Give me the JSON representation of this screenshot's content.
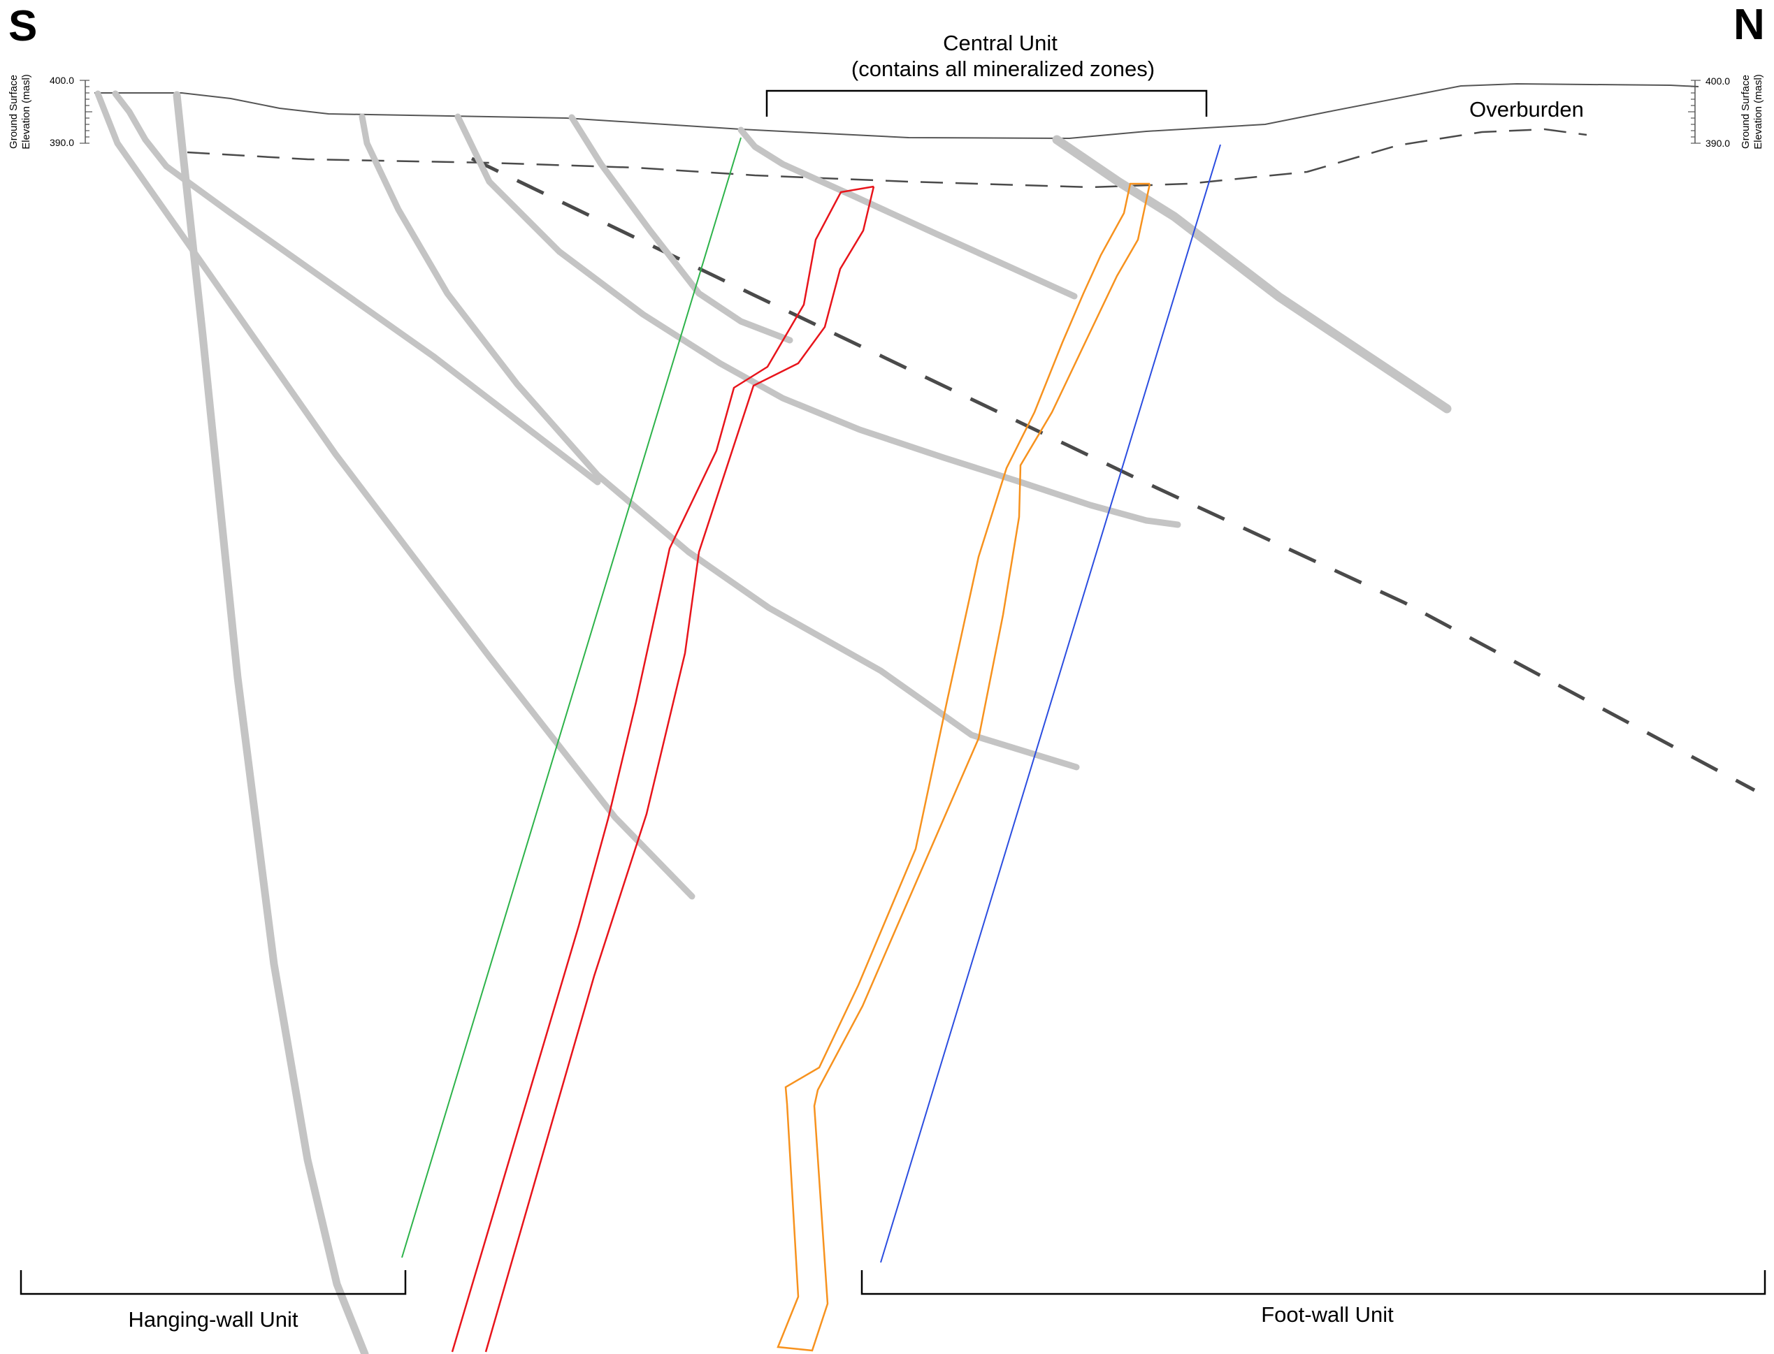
{
  "compass": {
    "south": "S",
    "north": "N"
  },
  "labels": {
    "central_unit_line1": "Central Unit",
    "central_unit_line2": "(contains all mineralized zones)",
    "overburden": "Overburden",
    "hanging_wall_unit": "Hanging-wall Unit",
    "foot_wall_unit": "Foot-wall Unit"
  },
  "elevation_scale": {
    "top_tick": "400.0",
    "bottom_tick": "390.0",
    "axis_label_line1": "Ground Surface",
    "axis_label_line2": "Elevation (masl)"
  },
  "colors": {
    "ground_surface": "#555555",
    "structures": "#c4c4c4",
    "dashed_fault": "#4a4a4a",
    "overburden_base": "#4a4a4a",
    "red_zone": "#e8141b",
    "orange_zone": "#f7921e",
    "green_drillhole": "#2db34a",
    "blue_drillhole": "#2b4de0",
    "brackets": "#000000"
  }
}
